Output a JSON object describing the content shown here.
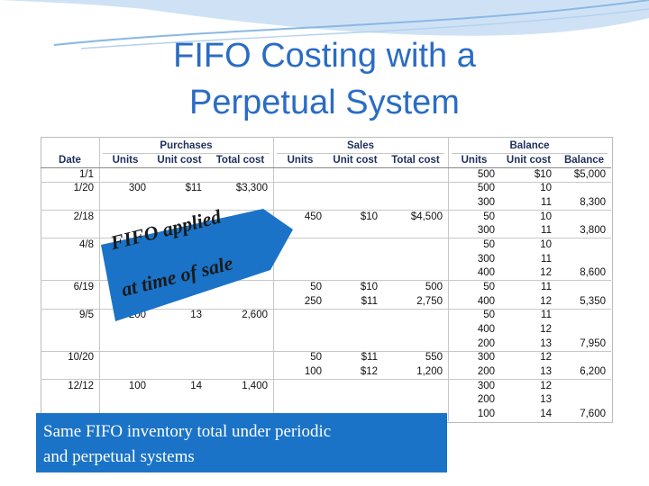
{
  "title": [
    "FIFO Costing with a",
    "Perpetual System"
  ],
  "table": {
    "groups": [
      {
        "label": "Purchases",
        "from": 1,
        "to": 3
      },
      {
        "label": "Sales",
        "from": 4,
        "to": 6
      },
      {
        "label": "Balance",
        "from": 7,
        "to": 9
      }
    ],
    "columns": [
      "Date",
      "Units",
      "Unit cost",
      "Total cost",
      "Units",
      "Unit cost",
      "Total cost",
      "Units",
      "Unit cost",
      "Balance"
    ],
    "rows": [
      {
        "lines": [
          [
            "1/1",
            null,
            null,
            null,
            null,
            null,
            null,
            "500",
            "$10",
            "$5,000"
          ]
        ]
      },
      {
        "lines": [
          [
            "1/20",
            "300",
            "$11",
            "$3,300",
            null,
            null,
            null,
            "500",
            "10",
            null
          ],
          [
            null,
            null,
            null,
            null,
            null,
            null,
            null,
            "300",
            "11",
            "8,300"
          ]
        ]
      },
      {
        "lines": [
          [
            "2/18",
            null,
            null,
            null,
            "450",
            "$10",
            "$4,500",
            "50",
            "10",
            null
          ],
          [
            null,
            null,
            null,
            null,
            null,
            null,
            null,
            "300",
            "11",
            "3,800"
          ]
        ]
      },
      {
        "lines": [
          [
            "4/8",
            null,
            null,
            null,
            null,
            null,
            null,
            "50",
            "10",
            null
          ],
          [
            null,
            null,
            null,
            null,
            null,
            null,
            null,
            "300",
            "11",
            null
          ],
          [
            null,
            null,
            null,
            null,
            null,
            null,
            null,
            "400",
            "12",
            "8,600"
          ]
        ]
      },
      {
        "lines": [
          [
            "6/19",
            null,
            null,
            null,
            "50",
            "$10",
            "500",
            "50",
            "11",
            null
          ],
          [
            null,
            null,
            null,
            null,
            "250",
            "$11",
            "2,750",
            "400",
            "12",
            "5,350"
          ]
        ]
      },
      {
        "lines": [
          [
            "9/5",
            "200",
            "13",
            "2,600",
            null,
            null,
            null,
            "50",
            "11",
            null
          ],
          [
            null,
            null,
            null,
            null,
            null,
            null,
            null,
            "400",
            "12",
            null
          ],
          [
            null,
            null,
            null,
            null,
            null,
            null,
            null,
            "200",
            "13",
            "7,950"
          ]
        ]
      },
      {
        "lines": [
          [
            "10/20",
            null,
            null,
            null,
            "50",
            "$11",
            "550",
            "300",
            "12",
            null
          ],
          [
            null,
            null,
            null,
            null,
            "100",
            "$12",
            "1,200",
            "200",
            "13",
            "6,200"
          ]
        ]
      },
      {
        "lines": [
          [
            "12/12",
            "100",
            "14",
            "1,400",
            null,
            null,
            null,
            "300",
            "12",
            null
          ],
          [
            null,
            null,
            null,
            null,
            null,
            null,
            null,
            "200",
            "13",
            null
          ],
          [
            null,
            null,
            null,
            null,
            null,
            null,
            null,
            "100",
            "14",
            "7,600"
          ]
        ]
      }
    ]
  },
  "callout": [
    "FIFO applied",
    "at time of sale"
  ],
  "note": [
    "Same FIFO inventory total under periodic",
    "and perpetual systems"
  ]
}
